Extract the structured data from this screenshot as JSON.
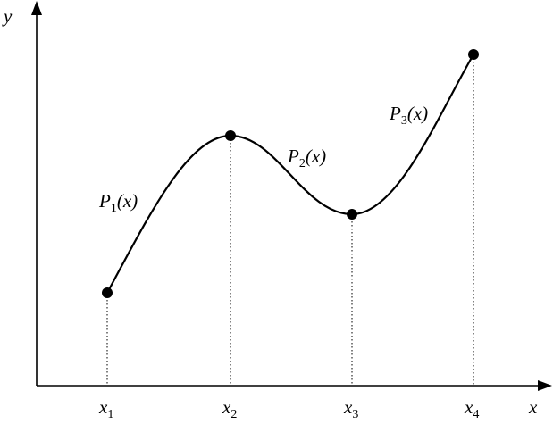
{
  "axes": {
    "x_label": "x",
    "y_label": "y"
  },
  "knots": [
    {
      "name": "x",
      "index": "1"
    },
    {
      "name": "x",
      "index": "2"
    },
    {
      "name": "x",
      "index": "3"
    },
    {
      "name": "x",
      "index": "4"
    }
  ],
  "segments": [
    {
      "name": "P",
      "index": "1",
      "argument": "(x)"
    },
    {
      "name": "P",
      "index": "2",
      "argument": "(x)"
    },
    {
      "name": "P",
      "index": "3",
      "argument": "(x)"
    }
  ],
  "colors": {
    "ink": "#000000",
    "background": "#ffffff"
  }
}
